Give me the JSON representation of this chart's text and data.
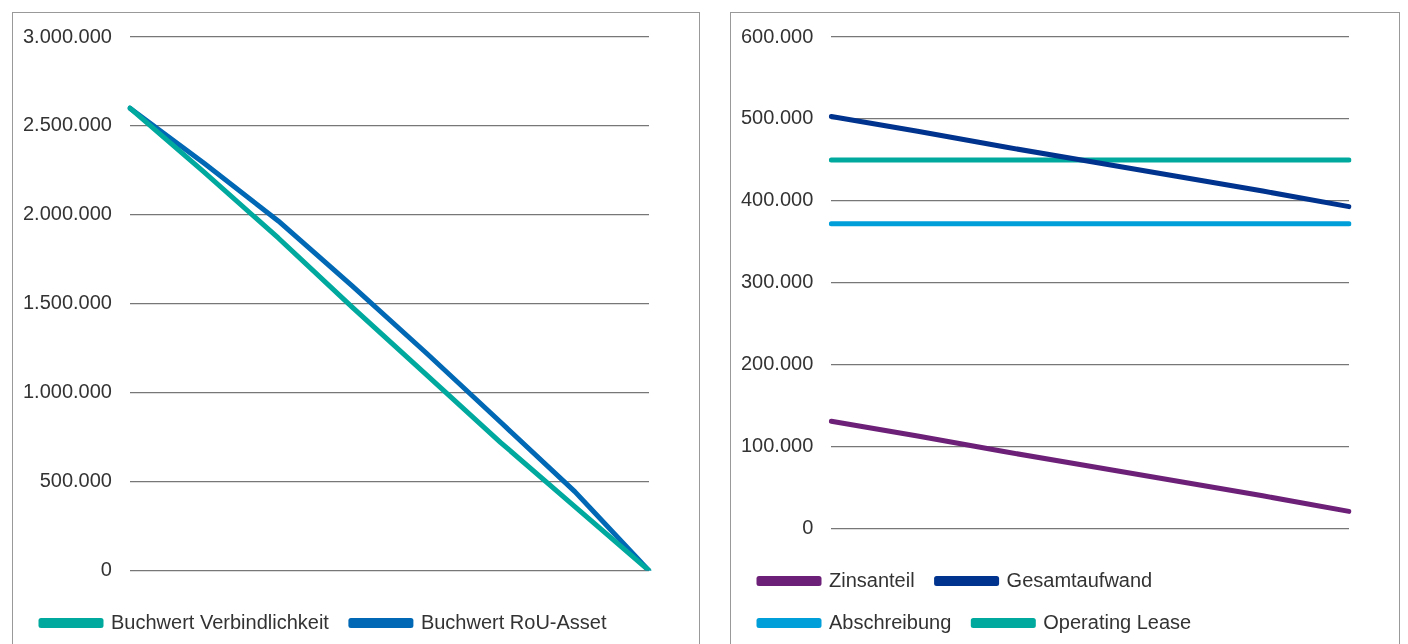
{
  "chart_data": [
    {
      "type": "line",
      "categories": [
        null,
        null,
        null,
        null,
        null,
        null,
        null,
        null
      ],
      "series": [
        {
          "name": "Buchwert Verbindlichkeit",
          "color": "#00a99d",
          "values": [
            2600000,
            2240000,
            1870000,
            1480000,
            1100000,
            720000,
            360000,
            0
          ]
        },
        {
          "name": "Buchwert RoU-Asset",
          "color": "#0068b4",
          "values": [
            2600000,
            2290000,
            1966000,
            1600000,
            1222000,
            834000,
            444000,
            0
          ]
        }
      ],
      "ylim": [
        0,
        3000000
      ],
      "yticks": [
        {
          "value": 0,
          "label": "0"
        },
        {
          "value": 500000,
          "label": "500.000"
        },
        {
          "value": 1000000,
          "label": "1.000.000"
        },
        {
          "value": 1500000,
          "label": "1.500.000"
        },
        {
          "value": 2000000,
          "label": "2.000.000"
        },
        {
          "value": 2500000,
          "label": "2.500.000"
        },
        {
          "value": 3000000,
          "label": "3.000.000"
        }
      ],
      "grid": "y",
      "legend": "bottom",
      "marker": "none",
      "line_style": "solid"
    },
    {
      "type": "line",
      "categories": [
        null,
        null,
        null,
        null,
        null,
        null,
        null
      ],
      "series": [
        {
          "name": "Zinsanteil",
          "color": "#6d2077",
          "values": [
            131000,
            113000,
            94000,
            76000,
            58000,
            40000,
            21000
          ]
        },
        {
          "name": "Gesamtaufwand",
          "color": "#00338d",
          "values": [
            503000,
            485000,
            466000,
            448000,
            430000,
            412000,
            393000
          ]
        },
        {
          "name": "Abschreibung",
          "color": "#009fda",
          "values": [
            372000,
            372000,
            372000,
            372000,
            372000,
            372000,
            372000
          ]
        },
        {
          "name": "Operating Lease",
          "color": "#00a99d",
          "values": [
            450000,
            450000,
            450000,
            450000,
            450000,
            450000,
            450000
          ]
        }
      ],
      "ylim": [
        0,
        600000
      ],
      "yticks": [
        {
          "value": 0,
          "label": "0"
        },
        {
          "value": 100000,
          "label": "100.000"
        },
        {
          "value": 200000,
          "label": "200.000"
        },
        {
          "value": 300000,
          "label": "300.000"
        },
        {
          "value": 400000,
          "label": "400.000"
        },
        {
          "value": 500000,
          "label": "500.000"
        },
        {
          "value": 600000,
          "label": "600.000"
        }
      ],
      "grid": "y",
      "legend": "bottom",
      "marker": "none",
      "line_style": "solid"
    }
  ]
}
